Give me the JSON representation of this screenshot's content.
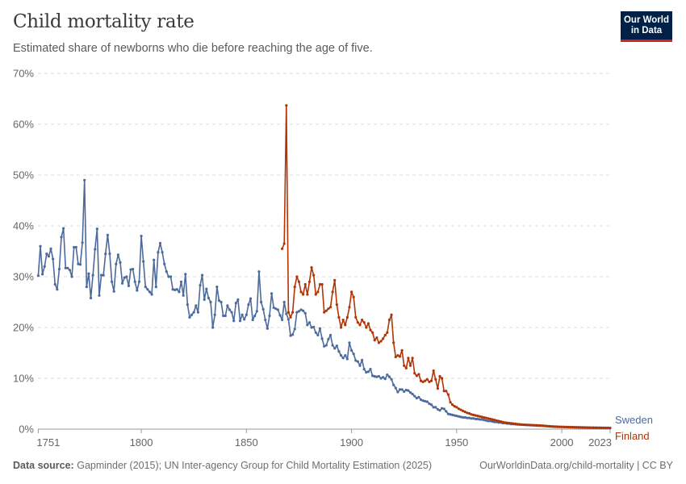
{
  "header": {
    "title": "Child mortality rate",
    "subtitle": "Estimated share of newborns who die before reaching the age of five.",
    "logo_text": "Our World in Data"
  },
  "footer": {
    "source_label": "Data source:",
    "source_text": "Gapminder (2015); UN Inter-agency Group for Child Mortality Estimation (2025)",
    "url_license": "OurWorldinData.org/child-mortality | CC BY"
  },
  "colors": {
    "logo_bg": "#002147",
    "logo_accent": "#ce261e",
    "sweden": "#4c6a9c",
    "finland": "#b13507"
  },
  "chart_data": {
    "type": "line",
    "title": "Child mortality rate",
    "xlim": [
      1751,
      2023
    ],
    "ylim": [
      0,
      70
    ],
    "grid": true,
    "x_ticks": [
      "1751",
      "1800",
      "1850",
      "1900",
      "1950",
      "2000",
      "2023"
    ],
    "y_ticks": [
      "0%",
      "10%",
      "20%",
      "30%",
      "40%",
      "50%",
      "60%",
      "70%"
    ],
    "legend": "right (end labels)",
    "series": [
      {
        "name": "Sweden",
        "color": "#4c6a9c",
        "first_year": 1751,
        "values": [
          30.2,
          36,
          30.5,
          32,
          34.5,
          34,
          35.5,
          33.5,
          28.5,
          27.5,
          31.5,
          37.8,
          39.5,
          31.7,
          31.7,
          31.3,
          30,
          35.8,
          35.8,
          32.5,
          32.4,
          36.7,
          49,
          28,
          30.6,
          25.8,
          30.3,
          35.4,
          39.4,
          26.3,
          30.3,
          30.3,
          34.5,
          38.2,
          34.5,
          29,
          27.1,
          32.5,
          34.3,
          32.8,
          28.7,
          29.8,
          30,
          28.2,
          31.4,
          31.5,
          29,
          27.3,
          29,
          38,
          33,
          28,
          27.5,
          27,
          26.5,
          33.3,
          28,
          34.8,
          36.6,
          34.8,
          32.5,
          31,
          30,
          30,
          27.5,
          27.4,
          27.5,
          27,
          29,
          26.3,
          30.5,
          24.5,
          22,
          22.5,
          23,
          24.3,
          23,
          28.3,
          30.3,
          25.5,
          27.6,
          25.8,
          25,
          20,
          22.5,
          28,
          25.3,
          25,
          22.3,
          22.3,
          24.3,
          23.5,
          23,
          21.3,
          24.8,
          25.5,
          21.3,
          22.5,
          21.6,
          22.5,
          24.5,
          25.7,
          21.5,
          22.3,
          23.2,
          31,
          25,
          23.6,
          21.5,
          19.8,
          22.3,
          26.7,
          23.9,
          23.7,
          23.5,
          22.4,
          21.5,
          25,
          22.7,
          21.6,
          18.4,
          18.6,
          19.7,
          23,
          23.2,
          23.5,
          23.3,
          22.8,
          20.5,
          21,
          20,
          20.1,
          19,
          18.5,
          19.8,
          17.8,
          16.3,
          16.5,
          17.7,
          18.5,
          16.5,
          15.9,
          16.4,
          15.3,
          14.5,
          14,
          14.5,
          13.8,
          17,
          15.5,
          14.8,
          13.5,
          13.3,
          12.5,
          13.6,
          11.8,
          11.2,
          11.3,
          11.8,
          10.5,
          10.4,
          10.3,
          10.4,
          10,
          10.2,
          9.9,
          10.7,
          10.3,
          9.8,
          8.7,
          8.1,
          7.3,
          7.8,
          7.8,
          7.4,
          7.7,
          7.6,
          7.2,
          6.9,
          6.5,
          6.1,
          6.3,
          5.8,
          5.6,
          5.5,
          5.4,
          5.0,
          4.8,
          4.3,
          4.3,
          3.9,
          3.7,
          4.1,
          4.0,
          3.5,
          3.0,
          2.9,
          2.8,
          2.7,
          2.6,
          2.5,
          2.4,
          2.3,
          2.3,
          2.2,
          2.2,
          2.1,
          2.1,
          2.0,
          2.0,
          1.9,
          1.9,
          1.8,
          1.7,
          1.6,
          1.6,
          1.5,
          1.4,
          1.4,
          1.3,
          1.3,
          1.2,
          1.2,
          1.1,
          1.1,
          1.0,
          1.0,
          0.95,
          0.92,
          0.9,
          0.88,
          0.85,
          0.82,
          0.8,
          0.78,
          0.76,
          0.74,
          0.72,
          0.7,
          0.68,
          0.66,
          0.63,
          0.6,
          0.57,
          0.54,
          0.52,
          0.5,
          0.48,
          0.46,
          0.45,
          0.44,
          0.43,
          0.42,
          0.41,
          0.4,
          0.39,
          0.38,
          0.37,
          0.36,
          0.35,
          0.34,
          0.33,
          0.32,
          0.31,
          0.3,
          0.3,
          0.29,
          0.28,
          0.28,
          0.27,
          0.26,
          0.26,
          0.25
        ]
      },
      {
        "name": "Finland",
        "color": "#b13507",
        "first_year": 1867,
        "values": [
          35.5,
          36.5,
          63.7,
          23,
          22,
          23,
          28,
          30,
          29,
          27,
          26.5,
          28.5,
          26.5,
          29,
          31.8,
          30.3,
          26.5,
          27,
          28.5,
          28.5,
          23,
          23.3,
          23.7,
          24,
          27,
          29.3,
          24.5,
          22,
          20,
          21.5,
          20.5,
          22,
          24,
          27,
          26,
          22,
          21,
          20.5,
          21.5,
          21,
          20,
          20.8,
          19.5,
          19,
          17.5,
          18,
          17,
          17.3,
          17.8,
          18.5,
          19,
          21.5,
          22.5,
          17,
          14.2,
          14.5,
          14.3,
          15.5,
          12.5,
          12,
          14,
          12.5,
          14,
          11,
          10.5,
          10.8,
          9.5,
          9.3,
          9.5,
          9.8,
          9.3,
          9.5,
          11.5,
          9.8,
          8,
          10.4,
          10,
          7.5,
          7.5,
          6.8,
          5.3,
          4.8,
          4.5,
          4.3,
          4.0,
          3.8,
          3.6,
          3.4,
          3.2,
          3.1,
          2.9,
          2.8,
          2.7,
          2.6,
          2.5,
          2.4,
          2.3,
          2.2,
          2.1,
          2.0,
          1.9,
          1.8,
          1.7,
          1.6,
          1.5,
          1.4,
          1.3,
          1.25,
          1.2,
          1.15,
          1.1,
          1.05,
          1.0,
          0.95,
          0.9,
          0.88,
          0.86,
          0.84,
          0.82,
          0.8,
          0.78,
          0.76,
          0.74,
          0.72,
          0.68,
          0.64,
          0.6,
          0.56,
          0.53,
          0.5,
          0.48,
          0.46,
          0.45,
          0.44,
          0.42,
          0.41,
          0.4,
          0.38,
          0.37,
          0.36,
          0.35,
          0.34,
          0.33,
          0.32,
          0.31,
          0.3,
          0.3,
          0.29,
          0.28,
          0.27,
          0.27,
          0.26,
          0.25,
          0.25,
          0.24,
          0.24,
          0.23
        ]
      }
    ]
  }
}
